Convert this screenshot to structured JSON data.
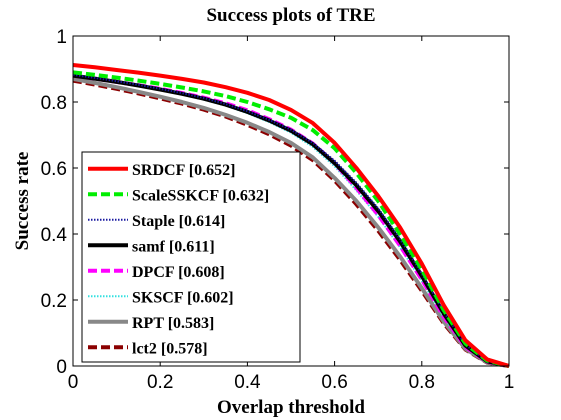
{
  "chart_data": {
    "type": "line",
    "title": "Success plots of TRE",
    "xlabel": "Overlap threshold",
    "ylabel": "Success rate",
    "xlim": [
      0,
      1
    ],
    "ylim": [
      0,
      1
    ],
    "x_ticks": [
      "0",
      "0.2",
      "0.4",
      "0.6",
      "0.8",
      "1"
    ],
    "y_ticks": [
      "0",
      "0.2",
      "0.4",
      "0.6",
      "0.8",
      "1"
    ],
    "grid": false,
    "legend_position": "lower-left",
    "x": [
      0,
      0.05,
      0.1,
      0.15,
      0.2,
      0.25,
      0.3,
      0.35,
      0.4,
      0.45,
      0.5,
      0.55,
      0.6,
      0.65,
      0.7,
      0.75,
      0.8,
      0.85,
      0.9,
      0.95,
      1.0
    ],
    "series": [
      {
        "name": "SRDCF [0.652]",
        "color": "#ff0000",
        "dash": "solid",
        "values": [
          0.912,
          0.905,
          0.897,
          0.889,
          0.88,
          0.87,
          0.859,
          0.845,
          0.828,
          0.806,
          0.776,
          0.736,
          0.676,
          0.6,
          0.515,
          0.42,
          0.31,
          0.185,
          0.078,
          0.02,
          0.0
        ]
      },
      {
        "name": "ScaleSSKCF [0.632]",
        "color": "#00ee00",
        "dash": "dashed",
        "values": [
          0.89,
          0.882,
          0.874,
          0.865,
          0.855,
          0.844,
          0.832,
          0.818,
          0.8,
          0.778,
          0.752,
          0.715,
          0.66,
          0.585,
          0.5,
          0.4,
          0.292,
          0.17,
          0.068,
          0.016,
          0.0
        ]
      },
      {
        "name": "Staple [0.614]",
        "color": "#1a1aa0",
        "dash": "dotted",
        "values": [
          0.882,
          0.873,
          0.863,
          0.852,
          0.84,
          0.827,
          0.812,
          0.794,
          0.772,
          0.746,
          0.716,
          0.676,
          0.622,
          0.555,
          0.478,
          0.385,
          0.28,
          0.165,
          0.065,
          0.015,
          0.0
        ]
      },
      {
        "name": "samf [0.611]",
        "color": "#000000",
        "dash": "solid",
        "values": [
          0.88,
          0.871,
          0.861,
          0.85,
          0.838,
          0.825,
          0.81,
          0.792,
          0.77,
          0.744,
          0.713,
          0.672,
          0.615,
          0.548,
          0.47,
          0.378,
          0.273,
          0.16,
          0.062,
          0.014,
          0.0
        ]
      },
      {
        "name": "DPCF [0.608]",
        "color": "#ff00ff",
        "dash": "dashed",
        "values": [
          0.88,
          0.871,
          0.861,
          0.851,
          0.84,
          0.827,
          0.813,
          0.796,
          0.775,
          0.748,
          0.716,
          0.674,
          0.615,
          0.54,
          0.458,
          0.365,
          0.262,
          0.15,
          0.058,
          0.013,
          0.0
        ]
      },
      {
        "name": "SKSCF [0.602]",
        "color": "#33e0e0",
        "dash": "dotted",
        "values": [
          0.882,
          0.872,
          0.862,
          0.85,
          0.837,
          0.823,
          0.807,
          0.789,
          0.766,
          0.739,
          0.707,
          0.664,
          0.605,
          0.532,
          0.452,
          0.36,
          0.258,
          0.148,
          0.057,
          0.012,
          0.0
        ]
      },
      {
        "name": "RPT [0.583]",
        "color": "#888888",
        "dash": "solid",
        "values": [
          0.87,
          0.858,
          0.845,
          0.831,
          0.816,
          0.8,
          0.782,
          0.761,
          0.737,
          0.709,
          0.676,
          0.632,
          0.57,
          0.5,
          0.42,
          0.332,
          0.236,
          0.135,
          0.052,
          0.011,
          0.0
        ]
      },
      {
        "name": "lct2 [0.578]",
        "color": "#8b0000",
        "dash": "dashed",
        "values": [
          0.865,
          0.853,
          0.84,
          0.826,
          0.811,
          0.795,
          0.777,
          0.756,
          0.731,
          0.702,
          0.668,
          0.624,
          0.562,
          0.49,
          0.41,
          0.322,
          0.228,
          0.13,
          0.05,
          0.01,
          0.0
        ]
      }
    ]
  }
}
